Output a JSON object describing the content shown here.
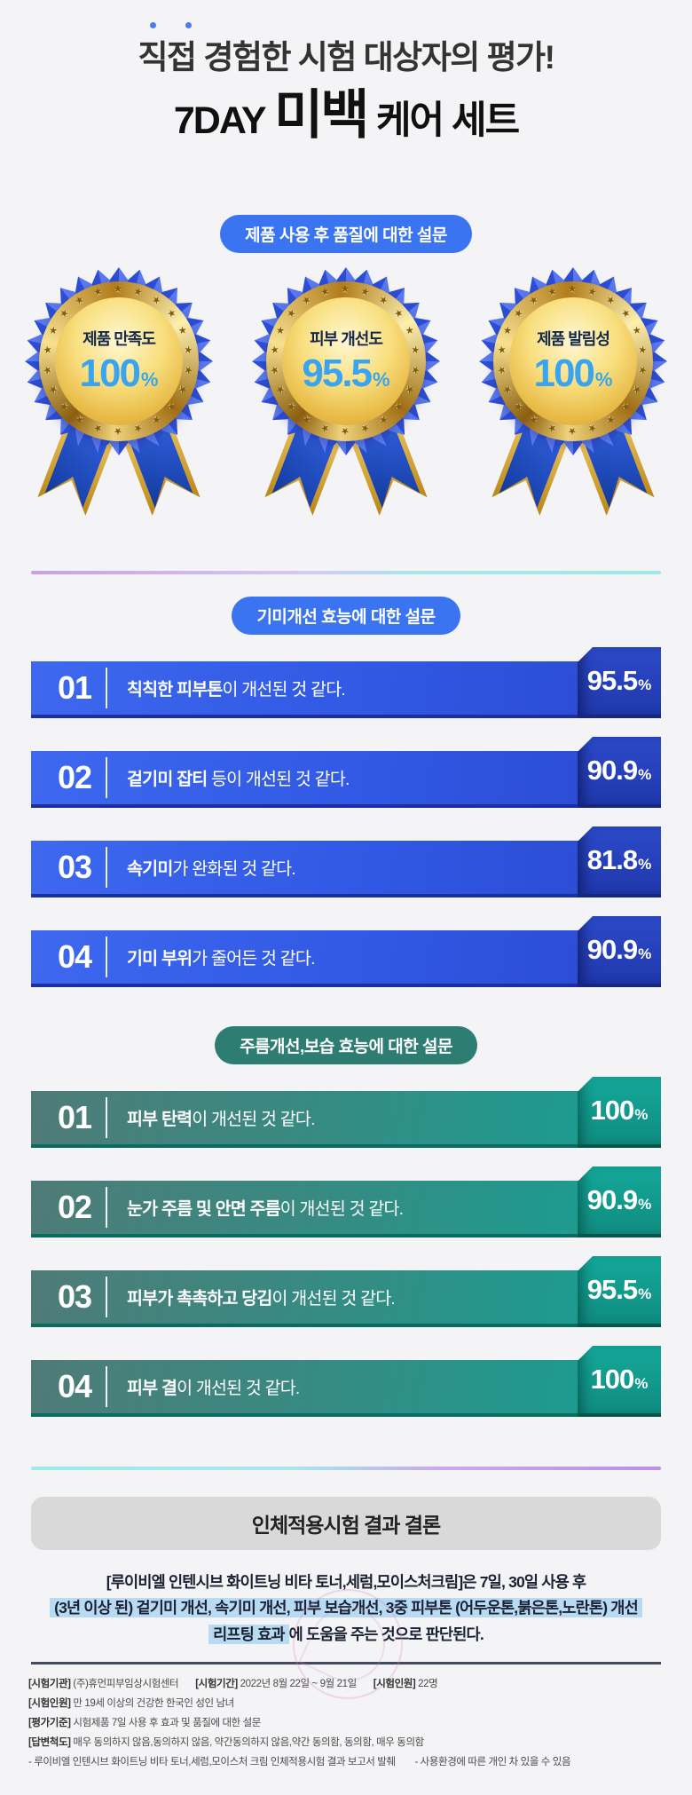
{
  "header": {
    "title": "직접 경험한 시험 대상자의 평가!",
    "brand_prefix": "7DAY",
    "brand_emphasis": "미백",
    "brand_suffix": "케어 세트"
  },
  "quality_section": {
    "badge": "제품 사용 후 품질에 대한 설문",
    "medals": [
      {
        "label": "제품 만족도",
        "value": "100",
        "unit": "%"
      },
      {
        "label": "피부 개선도",
        "value": "95.5",
        "unit": "%"
      },
      {
        "label": "제품 발림성",
        "value": "100",
        "unit": "%"
      }
    ]
  },
  "blemish_section": {
    "badge": "기미개선 효능에 대한 설문",
    "items": [
      {
        "num": "01",
        "bold": "칙칙한 피부톤",
        "rest": "이 개선된 것 같다.",
        "value": "95.5",
        "unit": "%"
      },
      {
        "num": "02",
        "bold": "겉기미 잡티",
        "rest": " 등이 개선된 것 같다.",
        "value": "90.9",
        "unit": "%"
      },
      {
        "num": "03",
        "bold": "속기미",
        "rest": "가 완화된 것 같다.",
        "value": "81.8",
        "unit": "%"
      },
      {
        "num": "04",
        "bold": "기미 부위",
        "rest": "가 줄어든 것 같다.",
        "value": "90.9",
        "unit": "%"
      }
    ]
  },
  "wrinkle_section": {
    "badge": "주름개선,보습 효능에 대한 설문",
    "items": [
      {
        "num": "01",
        "bold": "피부 탄력",
        "rest": "이 개선된 것 같다.",
        "value": "100",
        "unit": "%"
      },
      {
        "num": "02",
        "bold": "눈가 주름 및 안면 주름",
        "rest": "이 개선된 것 같다.",
        "value": "90.9",
        "unit": "%"
      },
      {
        "num": "03",
        "bold": "피부가 촉촉하고 당김",
        "rest": "이 개선된 것 같다.",
        "value": "95.5",
        "unit": "%"
      },
      {
        "num": "04",
        "bold": "피부 결",
        "rest": "이 개선된 것 같다.",
        "value": "100",
        "unit": "%"
      }
    ]
  },
  "conclusion": {
    "title": "인체적용시험 결과 결론",
    "line1": "[루이비엘 인텐시브 화이트닝 비타 토너,세럼,모이스처크림]은 7일, 30일 사용 후",
    "line2_highlight": "(3년 이상 된) 겉기미 개선, 속기미 개선, 피부 보습개선, 3중 피부톤 (어두운톤,붉은톤,노란톤) 개선",
    "line3_highlight": "리프팅 효과",
    "line3_rest": "에 도움을 주는 것으로 판단된다."
  },
  "footnotes": {
    "row1": [
      {
        "label": "[시험기관]",
        "text": "(주)휴먼피부임상시험센터"
      },
      {
        "label": "[시험기간]",
        "text": "2022년 8월 22일 ~ 9월 21일"
      },
      {
        "label": "[시험인원]",
        "text": "22명"
      },
      {
        "label": "[시험인원]",
        "text": "만 19세 이상의 건강한 한국인 성인 남녀"
      }
    ],
    "row2": [
      {
        "label": "[평가기준]",
        "text": "시험제품 7일 사용 후 효과 및 품질에 대한 설문"
      },
      {
        "label": "[답변척도]",
        "text": "매우 동의하지 않음,동의하지 않음, 약간동의하지 않음,약간 동의함, 동의함, 매우 동의함"
      }
    ],
    "row3": [
      {
        "label": "",
        "text": "- 루이비엘 인텐시브 화이트닝 비타 토너,세럼,모이스처 크림 인체적용시험 결과 보고서 발췌"
      },
      {
        "label": "",
        "text": "- 사용환경에 따른 개인 차 있을 수 있음"
      }
    ]
  },
  "colors": {
    "accent_blue": "#3B74F1",
    "accent_teal": "#2E7D73",
    "number_blue": "#3AA4EE",
    "highlight_blue": "#B9DAF3",
    "ribbon_blue": "#2450C4",
    "gold": "#E9BC49"
  },
  "chart_data": [
    {
      "type": "bar",
      "title": "제품 사용 후 품질에 대한 설문",
      "categories": [
        "제품 만족도",
        "피부 개선도",
        "제품 발림성"
      ],
      "values": [
        100,
        95.5,
        100
      ],
      "xlabel": "",
      "ylabel": "%",
      "ylim": [
        0,
        100
      ]
    },
    {
      "type": "bar",
      "title": "기미개선 효능에 대한 설문",
      "categories": [
        "칙칙한 피부톤이 개선된 것 같다.",
        "겉기미 잡티 등이 개선된 것 같다.",
        "속기미가 완화된 것 같다.",
        "기미 부위가 줄어든 것 같다."
      ],
      "values": [
        95.5,
        90.9,
        81.8,
        90.9
      ],
      "xlabel": "",
      "ylabel": "%",
      "ylim": [
        0,
        100
      ]
    },
    {
      "type": "bar",
      "title": "주름개선,보습 효능에 대한 설문",
      "categories": [
        "피부 탄력이 개선된 것 같다.",
        "눈가 주름 및 안면 주름이 개선된 것 같다.",
        "피부가 촉촉하고 당김이 개선된 것 같다.",
        "피부 결이 개선된 것 같다."
      ],
      "values": [
        100,
        90.9,
        95.5,
        100
      ],
      "xlabel": "",
      "ylabel": "%",
      "ylim": [
        0,
        100
      ]
    }
  ]
}
